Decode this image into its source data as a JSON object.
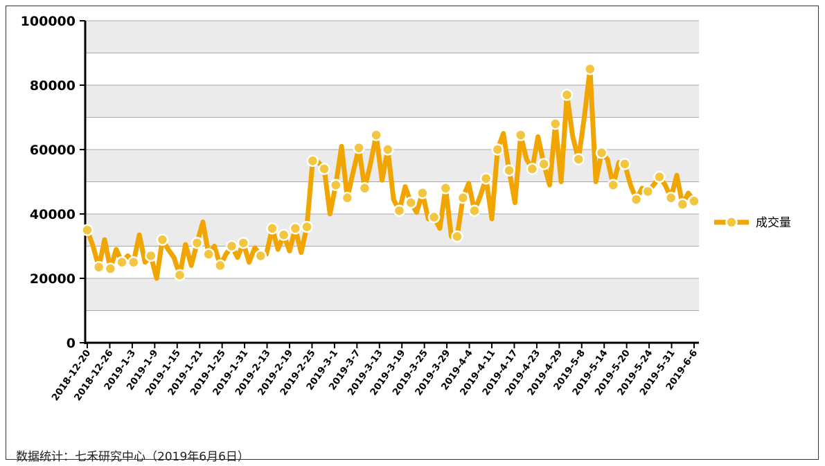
{
  "chart_data": {
    "type": "line",
    "ylim": [
      0,
      100000
    ],
    "yticks": [
      0,
      20000,
      40000,
      60000,
      80000,
      100000
    ],
    "ytick_labels": [
      "0",
      "20000",
      "40000",
      "60000",
      "80000",
      "100000"
    ],
    "grid": true,
    "legend_position": "right",
    "line_color": "#F0A500",
    "marker_face_color": "#F2C641",
    "marker_edge_color": "#FFFFFF",
    "band_color": "#EBEBEB",
    "x_tick_labels": [
      "2018-12-20",
      "2018-12-26",
      "2019-1-3",
      "2019-1-9",
      "2019-1-15",
      "2019-1-21",
      "2019-1-25",
      "2019-1-31",
      "2019-2-13",
      "2019-2-19",
      "2019-2-25",
      "2019-3-1",
      "2019-3-7",
      "2019-3-13",
      "2019-3-19",
      "2019-3-25",
      "2019-3-29",
      "2019-4-4",
      "2019-4-11",
      "2019-4-17",
      "2019-4-23",
      "2019-4-29",
      "2019-5-8",
      "2019-5-14",
      "2019-5-20",
      "2019-5-24",
      "2019-5-31",
      "2019-6-6"
    ],
    "series": [
      {
        "name": "成交量",
        "values": [
          35000,
          30000,
          23500,
          32000,
          23000,
          29000,
          25000,
          27000,
          25000,
          33500,
          25000,
          27000,
          20000,
          32000,
          29000,
          26500,
          21000,
          30500,
          24000,
          31000,
          37500,
          27500,
          30000,
          24000,
          27500,
          30000,
          26500,
          31000,
          25000,
          29500,
          27000,
          27500,
          35500,
          29000,
          33500,
          28500,
          35500,
          28000,
          36000,
          56500,
          56000,
          54000,
          40000,
          49000,
          61000,
          45000,
          53000,
          60500,
          48000,
          55500,
          64500,
          50500,
          60000,
          44500,
          41000,
          48500,
          43500,
          40500,
          46500,
          38500,
          39000,
          35500,
          48000,
          33000,
          33000,
          45000,
          49500,
          41000,
          45500,
          51000,
          38500,
          60000,
          65000,
          53500,
          43500,
          64500,
          57000,
          54000,
          64000,
          55500,
          49000,
          68000,
          50000,
          77000,
          64000,
          57000,
          70000,
          85000,
          50000,
          59000,
          57000,
          49000,
          56000,
          55500,
          49000,
          44500,
          48000,
          47000,
          49000,
          51500,
          49000,
          45000,
          52000,
          43000,
          46500,
          44000
        ]
      }
    ],
    "marker_indices": [
      0,
      2,
      4,
      6,
      8,
      11,
      13,
      16,
      19,
      21,
      23,
      25,
      27,
      30,
      32,
      34,
      36,
      38,
      39,
      41,
      43,
      45,
      47,
      48,
      50,
      52,
      54,
      56,
      58,
      60,
      62,
      64,
      65,
      67,
      69,
      71,
      73,
      75,
      77,
      79,
      81,
      83,
      85,
      87,
      89,
      91,
      93,
      95,
      97,
      99,
      101,
      103,
      105
    ]
  },
  "footer": {
    "source_text": "数据统计：七禾研究中心（2019年6月6日）"
  }
}
